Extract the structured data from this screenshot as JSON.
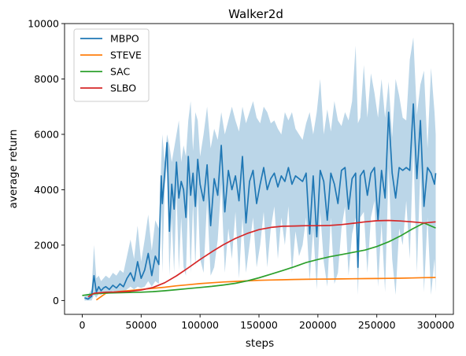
{
  "chart_data": {
    "type": "line",
    "title": "Walker2d",
    "xlabel": "steps",
    "ylabel": "average return",
    "xlim": [
      -15000,
      315000
    ],
    "ylim": [
      -500,
      10000
    ],
    "xticks": [
      0,
      50000,
      100000,
      150000,
      200000,
      250000,
      300000
    ],
    "xtick_labels": [
      "0",
      "50000",
      "100000",
      "150000",
      "200000",
      "250000",
      "300000"
    ],
    "yticks": [
      0,
      2000,
      4000,
      6000,
      8000,
      10000
    ],
    "ytick_labels": [
      "0",
      "2000",
      "4000",
      "6000",
      "8000",
      "10000"
    ],
    "grid": false,
    "legend_position": "top-left",
    "series": [
      {
        "name": "MBPO",
        "color": "#1f77b4",
        "band": "shaded min/max range",
        "x": [
          2000,
          5000,
          8000,
          10000,
          12000,
          14000,
          16000,
          18000,
          20000,
          23000,
          26000,
          29000,
          32000,
          35000,
          38000,
          41000,
          44000,
          47000,
          50000,
          53000,
          56000,
          59000,
          62000,
          65000,
          67000,
          68000,
          70000,
          72000,
          74000,
          76000,
          78000,
          80000,
          82000,
          84000,
          86000,
          88000,
          90000,
          92000,
          94000,
          96000,
          98000,
          100000,
          103000,
          106000,
          109000,
          112000,
          115000,
          118000,
          121000,
          124000,
          127000,
          130000,
          133000,
          136000,
          139000,
          142000,
          145000,
          148000,
          151000,
          154000,
          157000,
          160000,
          163000,
          166000,
          169000,
          172000,
          175000,
          178000,
          181000,
          184000,
          187000,
          190000,
          193000,
          196000,
          199000,
          202000,
          205000,
          208000,
          211000,
          214000,
          217000,
          220000,
          223000,
          226000,
          229000,
          232000,
          234000,
          236000,
          239000,
          242000,
          245000,
          248000,
          251000,
          254000,
          257000,
          260000,
          263000,
          266000,
          269000,
          272000,
          275000,
          278000,
          281000,
          284000,
          287000,
          290000,
          293000,
          296000,
          299000,
          300000
        ],
        "values": [
          100,
          50,
          150,
          900,
          300,
          500,
          350,
          450,
          500,
          400,
          550,
          450,
          600,
          500,
          800,
          1000,
          700,
          1400,
          800,
          1100,
          1700,
          900,
          1600,
          1300,
          4500,
          3500,
          4600,
          5700,
          2500,
          4200,
          3300,
          5000,
          3700,
          4300,
          4000,
          3000,
          5200,
          3800,
          4600,
          3400,
          5100,
          4200,
          3600,
          4900,
          2700,
          4400,
          3800,
          5600,
          3200,
          4700,
          4000,
          4500,
          3600,
          5200,
          2800,
          4300,
          4700,
          3500,
          4200,
          4800,
          4000,
          4400,
          4600,
          4100,
          4500,
          4300,
          4800,
          4200,
          4500,
          4400,
          4300,
          4600,
          2400,
          4500,
          2300,
          4700,
          4300,
          2900,
          4600,
          4200,
          3500,
          4700,
          4800,
          3300,
          4400,
          4600,
          1200,
          4500,
          4700,
          3800,
          4600,
          4800,
          2900,
          4700,
          3700,
          6800,
          4600,
          3700,
          4800,
          4700,
          4800,
          4700,
          7100,
          4400,
          6500,
          3400,
          4800,
          4600,
          4200,
          4600
        ],
        "lower": [
          0,
          0,
          0,
          200,
          100,
          250,
          200,
          300,
          300,
          250,
          350,
          300,
          350,
          300,
          400,
          500,
          400,
          500,
          450,
          500,
          700,
          500,
          700,
          600,
          3800,
          1000,
          4000,
          5000,
          900,
          3000,
          1000,
          4000,
          1100,
          3000,
          1200,
          900,
          3900,
          1000,
          3500,
          1200,
          3900,
          1500,
          1000,
          3600,
          900,
          1200,
          2200,
          4200,
          1000,
          2600,
          1500,
          3200,
          800,
          3000,
          1000,
          2000,
          3000,
          1200,
          2000,
          3200,
          1200,
          2600,
          3400,
          1500,
          3000,
          2000,
          3400,
          1000,
          2500,
          1600,
          2000,
          3000,
          700,
          2600,
          400,
          3200,
          1400,
          500,
          3000,
          600,
          1000,
          2600,
          3400,
          900,
          2400,
          3000,
          200,
          3000,
          3200,
          1000,
          3000,
          3600,
          500,
          2800,
          300,
          4800,
          1500,
          200,
          2600,
          2000,
          3600,
          1500,
          5600,
          1000,
          4800,
          300,
          3000,
          200,
          1500,
          300
        ],
        "upper": [
          150,
          200,
          400,
          2000,
          800,
          900,
          700,
          800,
          900,
          800,
          1000,
          900,
          1100,
          1000,
          1600,
          2200,
          1500,
          2700,
          1400,
          2200,
          3100,
          1800,
          2900,
          2600,
          5000,
          6000,
          5000,
          6000,
          5600,
          5000,
          5500,
          6000,
          6500,
          5000,
          5600,
          5200,
          6500,
          7200,
          5400,
          6800,
          6500,
          5200,
          6000,
          7000,
          5500,
          6200,
          5800,
          6800,
          6000,
          6500,
          7000,
          6500,
          6100,
          7000,
          6400,
          6800,
          7200,
          6600,
          6400,
          7000,
          6800,
          6400,
          6500,
          6200,
          6000,
          6800,
          6500,
          6800,
          6200,
          6000,
          5800,
          6400,
          6800,
          6000,
          6800,
          8000,
          6000,
          6900,
          6100,
          7200,
          6500,
          6300,
          6800,
          6500,
          7200,
          9200,
          6400,
          6600,
          8500,
          6600,
          8200,
          7500,
          6600,
          8000,
          6600,
          7900,
          5900,
          8000,
          7400,
          6600,
          6500,
          8700,
          9500,
          6700,
          7800,
          8300,
          5500,
          8400,
          6800,
          6000
        ]
      },
      {
        "name": "STEVE",
        "color": "#ff7f0e",
        "x": [
          12000,
          20000,
          30000,
          40000,
          50000,
          60000,
          70000,
          80000,
          90000,
          100000,
          110000,
          120000,
          130000,
          140000,
          150000,
          160000,
          170000,
          180000,
          190000,
          200000,
          210000,
          220000,
          230000,
          240000,
          250000,
          260000,
          270000,
          280000,
          290000,
          300000
        ],
        "values": [
          20,
          260,
          320,
          360,
          400,
          440,
          480,
          530,
          570,
          610,
          640,
          670,
          690,
          710,
          730,
          740,
          750,
          760,
          765,
          770,
          775,
          780,
          785,
          790,
          795,
          800,
          805,
          815,
          825,
          830
        ]
      },
      {
        "name": "SAC",
        "color": "#2ca02c",
        "x": [
          0,
          10000,
          20000,
          30000,
          40000,
          50000,
          60000,
          70000,
          80000,
          90000,
          100000,
          110000,
          120000,
          130000,
          140000,
          150000,
          160000,
          170000,
          180000,
          190000,
          200000,
          210000,
          220000,
          230000,
          240000,
          250000,
          260000,
          270000,
          280000,
          290000,
          300000
        ],
        "values": [
          180,
          240,
          270,
          280,
          290,
          300,
          320,
          350,
          390,
          430,
          470,
          510,
          560,
          620,
          710,
          820,
          950,
          1080,
          1220,
          1370,
          1480,
          1580,
          1660,
          1740,
          1820,
          1950,
          2120,
          2330,
          2580,
          2800,
          2620
        ]
      },
      {
        "name": "SLBO",
        "color": "#d62728",
        "x": [
          5000,
          10000,
          20000,
          30000,
          40000,
          50000,
          60000,
          70000,
          80000,
          90000,
          100000,
          110000,
          120000,
          130000,
          140000,
          150000,
          160000,
          170000,
          180000,
          190000,
          200000,
          210000,
          220000,
          230000,
          240000,
          250000,
          260000,
          270000,
          280000,
          290000,
          300000
        ],
        "values": [
          130,
          260,
          300,
          310,
          330,
          380,
          470,
          640,
          890,
          1180,
          1480,
          1760,
          2020,
          2240,
          2420,
          2560,
          2640,
          2680,
          2690,
          2700,
          2700,
          2710,
          2740,
          2790,
          2840,
          2880,
          2890,
          2870,
          2840,
          2800,
          2840
        ]
      }
    ]
  }
}
